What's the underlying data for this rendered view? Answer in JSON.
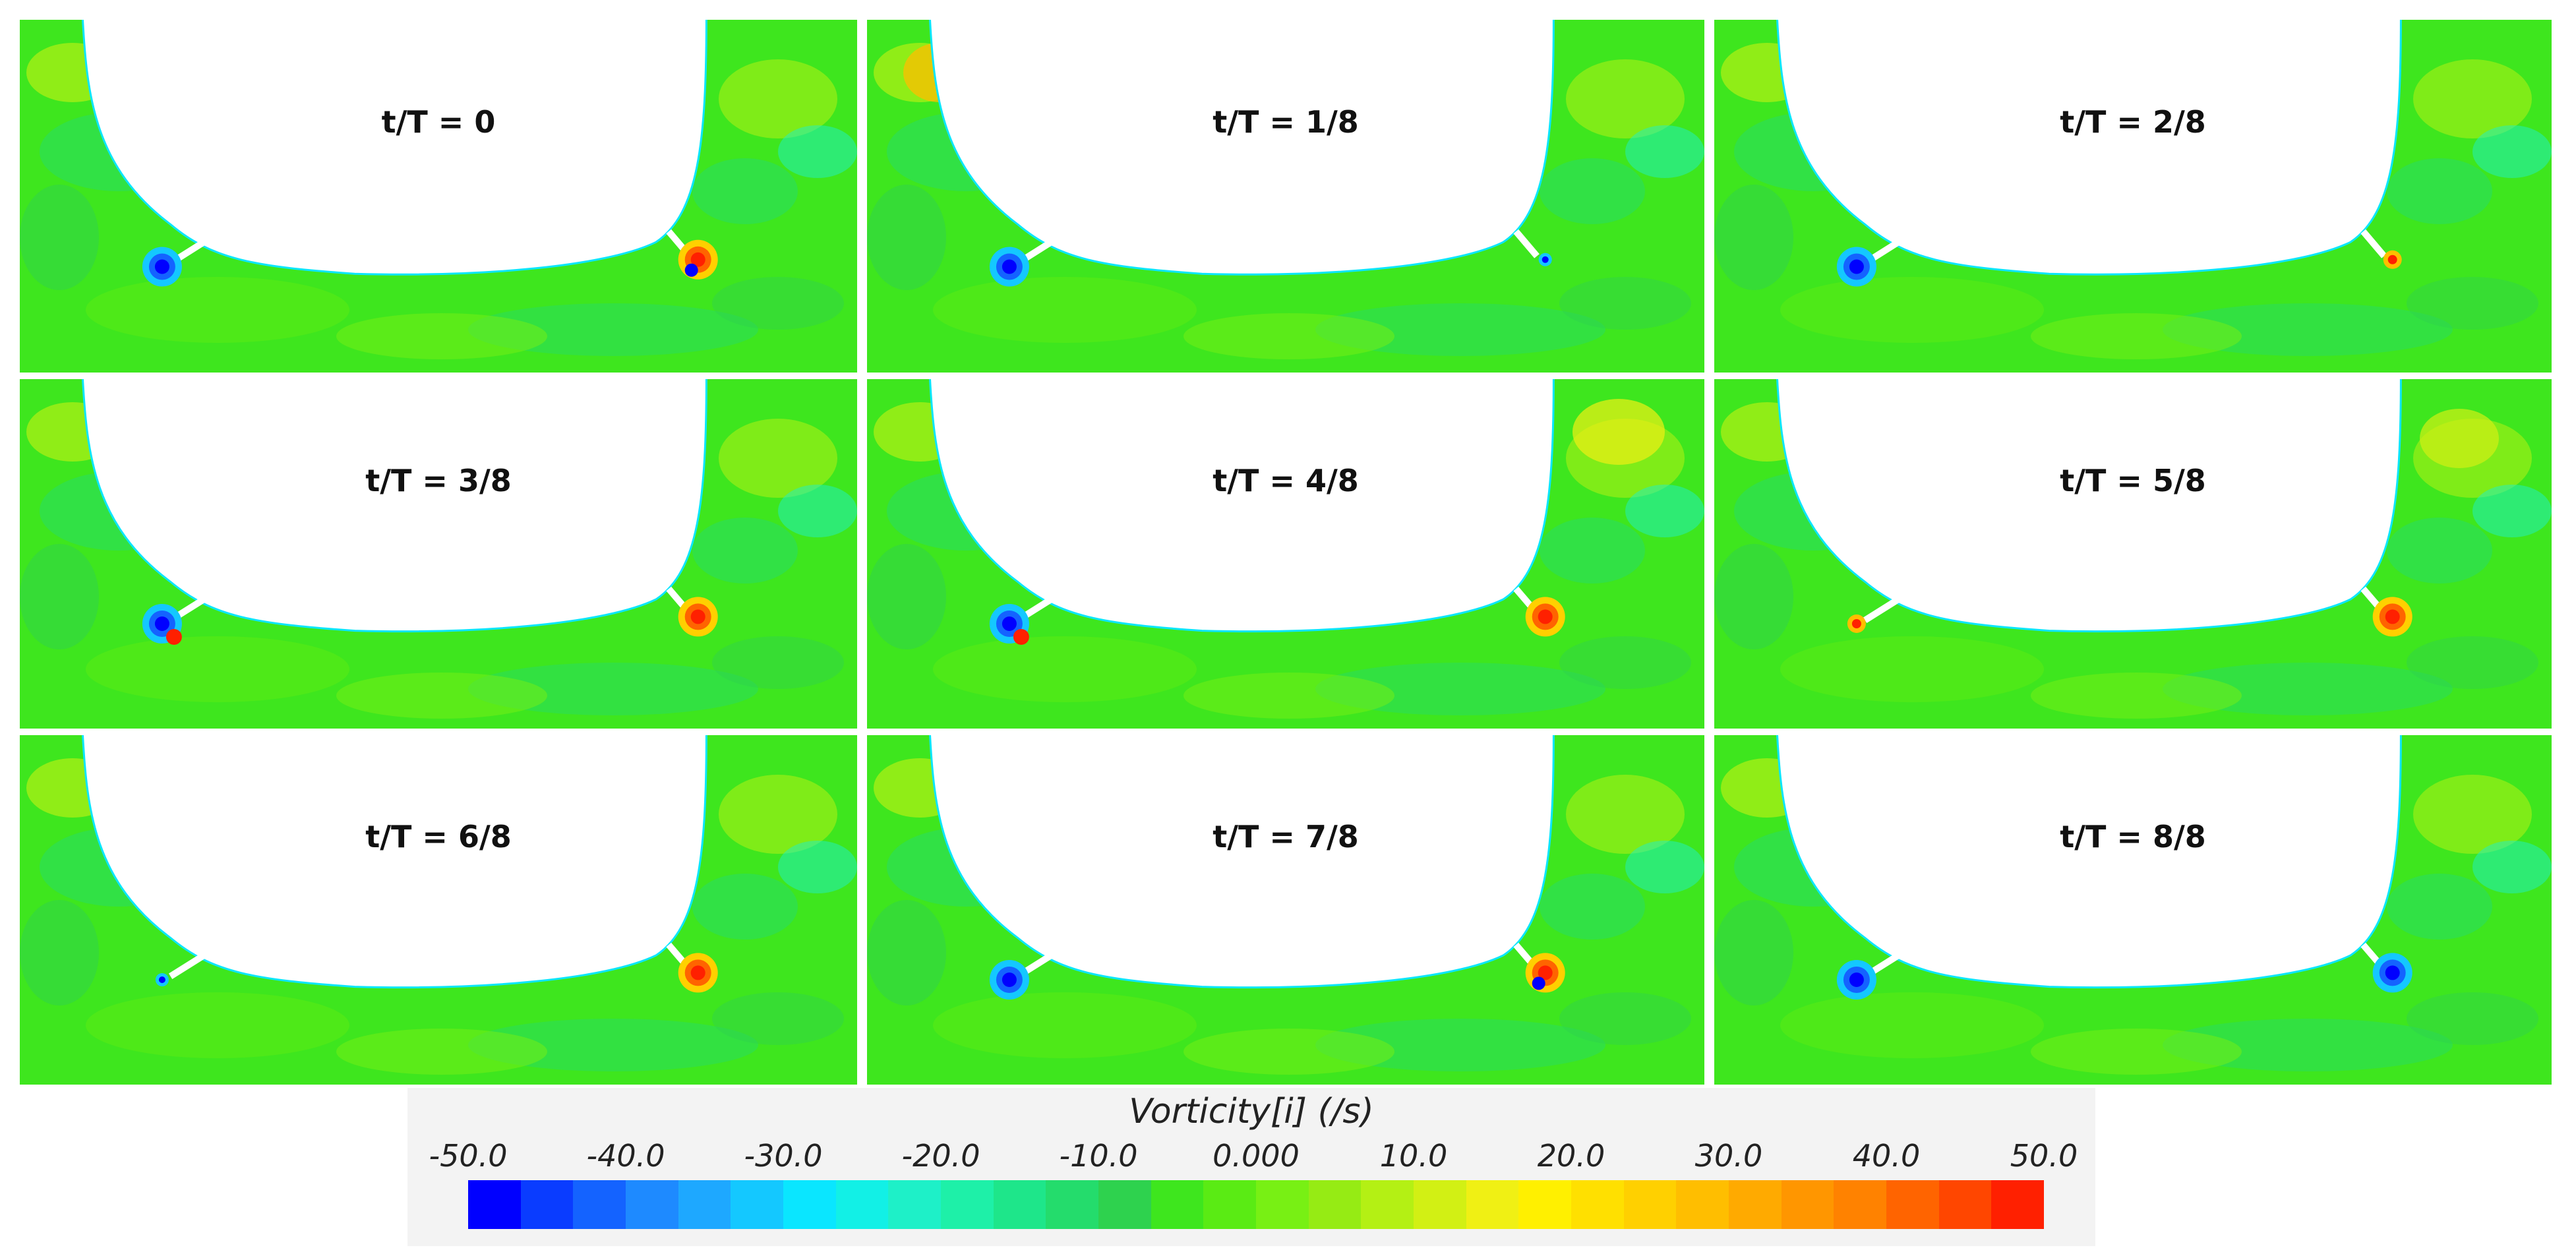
{
  "figure": {
    "panels": [
      {
        "label": "t/T = 0",
        "left_vortex": "dipole-blue",
        "right_vortex": "dipole-red-blue"
      },
      {
        "label": "t/T = 1/8",
        "left_vortex": "blue",
        "right_vortex": "weak"
      },
      {
        "label": "t/T = 2/8",
        "left_vortex": "blue",
        "right_vortex": "weak-red"
      },
      {
        "label": "t/T = 3/8",
        "left_vortex": "blue-red",
        "right_vortex": "red"
      },
      {
        "label": "t/T = 4/8",
        "left_vortex": "blue-red",
        "right_vortex": "red"
      },
      {
        "label": "t/T = 5/8",
        "left_vortex": "weak-red",
        "right_vortex": "red"
      },
      {
        "label": "t/T = 6/8",
        "left_vortex": "weak",
        "right_vortex": "red"
      },
      {
        "label": "t/T = 7/8",
        "left_vortex": "blue",
        "right_vortex": "red-blue"
      },
      {
        "label": "t/T = 8/8",
        "left_vortex": "blue",
        "right_vortex": "blue"
      }
    ]
  },
  "legend": {
    "title": "Vorticity[i] (/s)",
    "ticks": [
      "-50.0",
      "-40.0",
      "-30.0",
      "-20.0",
      "-10.0",
      "0.000",
      "10.0",
      "20.0",
      "30.0",
      "40.0",
      "50.0"
    ],
    "colors": [
      "#0000ff",
      "#0a3cff",
      "#1463ff",
      "#1e8aff",
      "#1ea8ff",
      "#14c8ff",
      "#0ae6ff",
      "#12f0e6",
      "#1ef0c8",
      "#1ef0a8",
      "#1ee68a",
      "#24dc6c",
      "#2ed24e",
      "#3ee61e",
      "#5aeb14",
      "#78f014",
      "#96eb14",
      "#b4f014",
      "#d2f014",
      "#f0f014",
      "#fff000",
      "#ffe000",
      "#ffd000",
      "#ffbe00",
      "#ffaa00",
      "#ff9600",
      "#ff8200",
      "#ff6400",
      "#ff4600",
      "#ff2000"
    ]
  }
}
